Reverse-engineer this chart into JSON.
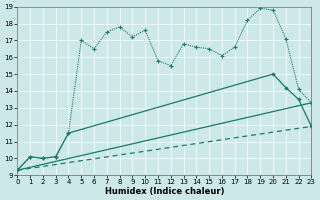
{
  "bg_color": "#cce8e8",
  "line_color": "#1a7a6a",
  "xlabel": "Humidex (Indice chaleur)",
  "xlim": [
    0,
    23
  ],
  "ylim": [
    9,
    19
  ],
  "yticks": [
    9,
    10,
    11,
    12,
    13,
    14,
    15,
    16,
    17,
    18,
    19
  ],
  "xticks": [
    0,
    1,
    2,
    3,
    4,
    5,
    6,
    7,
    8,
    9,
    10,
    11,
    12,
    13,
    14,
    15,
    16,
    17,
    18,
    19,
    20,
    21,
    22,
    23
  ],
  "line1_x": [
    0,
    1,
    2,
    3,
    4,
    5,
    6,
    7,
    8,
    9,
    10,
    11,
    12,
    13,
    14,
    15,
    16,
    17,
    18,
    19,
    20,
    21,
    22,
    23
  ],
  "line1_y": [
    9.3,
    10.1,
    10.0,
    10.1,
    11.5,
    17.0,
    16.5,
    17.5,
    17.8,
    17.2,
    17.6,
    15.8,
    15.5,
    16.8,
    16.6,
    16.5,
    16.1,
    16.6,
    18.2,
    18.9,
    18.8,
    17.1,
    14.1,
    13.3
  ],
  "line2_x": [
    0,
    1,
    2,
    3,
    4,
    20,
    21,
    22,
    23
  ],
  "line2_y": [
    9.3,
    10.1,
    10.0,
    10.1,
    11.5,
    15.0,
    14.2,
    13.5,
    11.9
  ],
  "line3_x": [
    0,
    23
  ],
  "line3_y": [
    9.3,
    13.3
  ],
  "line4_x": [
    0,
    23
  ],
  "line4_y": [
    9.3,
    11.9
  ]
}
